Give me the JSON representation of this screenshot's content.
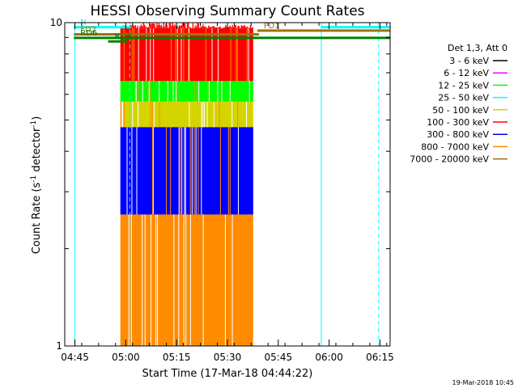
{
  "chart_data": {
    "type": "line",
    "title": "HESSI Observing Summary Count Rates",
    "xlabel": "Start Time (17-Mar-18 04:44:22)",
    "ylabel_main": "Count Rate (s",
    "ylabel_sup1": "-1",
    "ylabel_mid": " detector",
    "ylabel_sup2": "-1",
    "ylabel_end": ")",
    "y_scale": "log",
    "ylim": [
      1,
      10
    ],
    "y_tick_labels": [
      {
        "value": 1,
        "label": "1"
      },
      {
        "value": 10,
        "label": "10"
      }
    ],
    "y_minor_ticks": [
      2,
      3,
      4,
      5,
      6,
      7,
      8,
      9
    ],
    "xlim_minutes": [
      -3,
      93
    ],
    "x_ticks": [
      {
        "min": 0,
        "label": "04:45"
      },
      {
        "min": 15,
        "label": "05:00"
      },
      {
        "min": 30,
        "label": "05:15"
      },
      {
        "min": 45,
        "label": "05:30"
      },
      {
        "min": 60,
        "label": "05:45"
      },
      {
        "min": 75,
        "label": "06:00"
      },
      {
        "min": 90,
        "label": "06:15"
      }
    ],
    "legend_title": "Det 1,3, Att 0",
    "series": [
      {
        "name": "3 - 6 keV",
        "color": "#000000"
      },
      {
        "name": "6 - 12 keV",
        "color": "#ff00ff"
      },
      {
        "name": "12 - 25 keV",
        "color": "#00ff00"
      },
      {
        "name": "25 - 50 keV",
        "color": "#00ffff"
      },
      {
        "name": "50 - 100 keV",
        "color": "#d4d400"
      },
      {
        "name": "100 - 300 keV",
        "color": "#ff0000"
      },
      {
        "name": "300 - 800 keV",
        "color": "#0000ff"
      },
      {
        "name": "800 - 7000 keV",
        "color": "#ff8c00"
      },
      {
        "name": "7000 - 20000 keV",
        "color": "#a0720a"
      }
    ],
    "data_window_minutes": [
      13.4,
      52.6
    ],
    "bands": [
      {
        "series": "800 - 7000 keV",
        "color": "#ff8c00",
        "low": 1,
        "high": 2.55
      },
      {
        "series": "300 - 800 keV",
        "color": "#0000ff",
        "low": 2.55,
        "high": 4.75
      },
      {
        "series": "50 - 100 keV",
        "color": "#d4d400",
        "low": 4.75,
        "high": 5.7
      },
      {
        "series": "12 - 25 keV",
        "color": "#00ff00",
        "low": 5.7,
        "high": 6.6
      },
      {
        "series": "100 - 300 keV",
        "color": "#ff0000",
        "low": 6.6,
        "high": 9.6
      }
    ],
    "annotations": {
      "vertical_lines": [
        {
          "min": 0,
          "color": "#00ffff",
          "style": "solid"
        },
        {
          "min": 16.2,
          "color": "#00ffff",
          "style": "dashed"
        },
        {
          "min": 72.7,
          "color": "#00ffff",
          "style": "solid"
        },
        {
          "min": 89.6,
          "color": "#00ffff",
          "style": "dashed"
        }
      ],
      "horizontal_bars": [
        {
          "label": "N",
          "color": "#00ffff",
          "start": -0.3,
          "end": 16.5,
          "y": 9.68
        },
        {
          "label": "",
          "color": "#00ffff",
          "start": 72.7,
          "end": 93,
          "y": 9.68
        },
        {
          "label": "FD1",
          "color": "#a0720a",
          "start": 53.8,
          "end": 93,
          "y": 9.45
        },
        {
          "label": "FD2",
          "color": "#a0720a",
          "start": -0.3,
          "end": 54.3,
          "y": 9.2
        },
        {
          "label": "RD6",
          "color": "#008000",
          "start": -0.3,
          "end": 93,
          "y": 8.97
        },
        {
          "label": "RD6",
          "color": "#008000",
          "start": 9.8,
          "end": 15.6,
          "y": 8.75
        }
      ]
    }
  },
  "footer": {
    "timestamp": "19-Mar-2018 10:45"
  }
}
